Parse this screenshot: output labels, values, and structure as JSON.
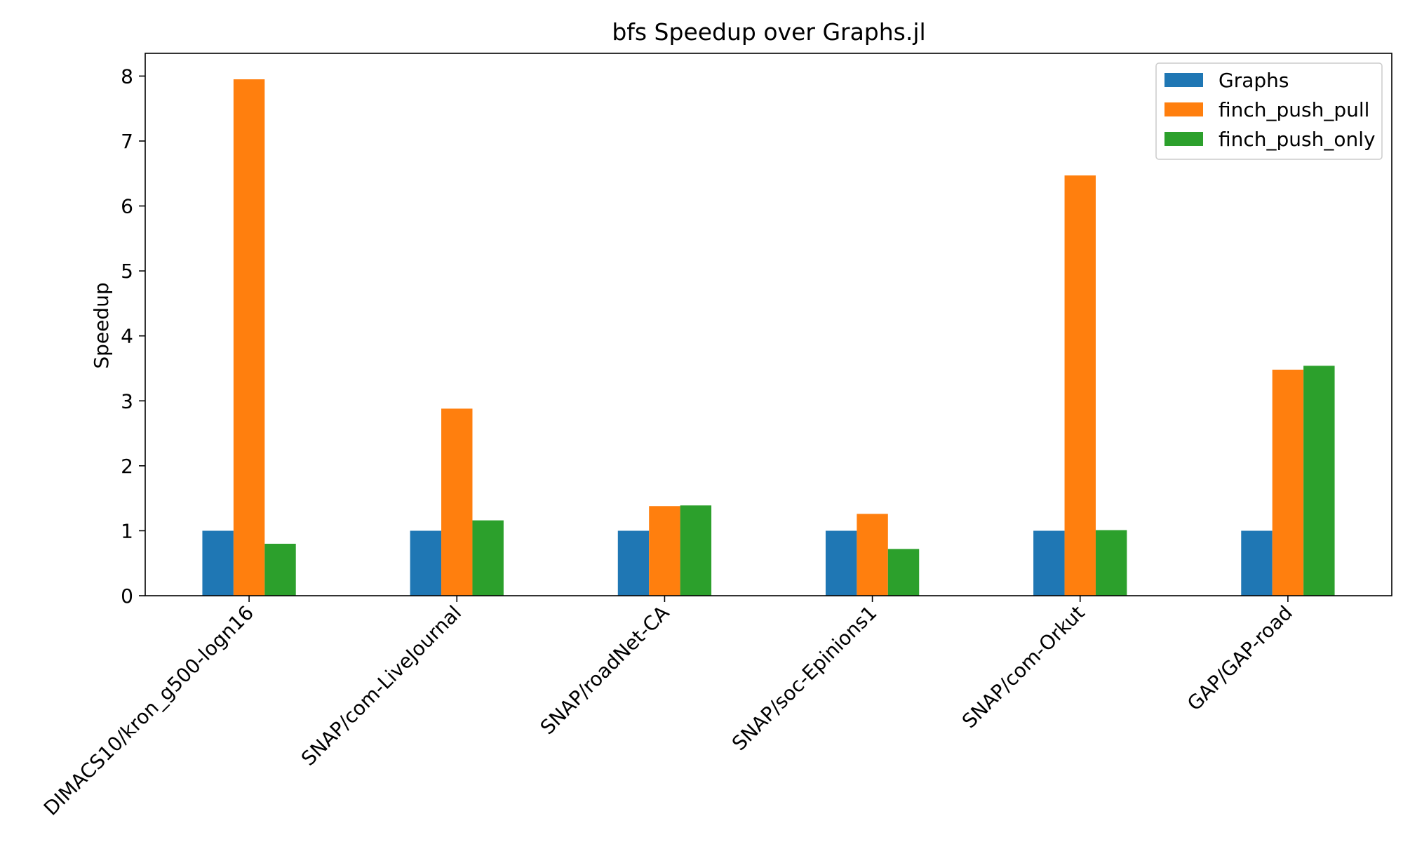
{
  "chart_data": {
    "type": "bar",
    "title": "bfs Speedup over Graphs.jl",
    "xlabel": "",
    "ylabel": "Speedup",
    "ylim": [
      0,
      8.35
    ],
    "yticks": [
      0,
      1,
      2,
      3,
      4,
      5,
      6,
      7,
      8
    ],
    "grid": false,
    "legend_position": "top-right",
    "categories": [
      "DIMACS10/kron_g500-logn16",
      "SNAP/com-LiveJournal",
      "SNAP/roadNet-CA",
      "SNAP/soc-Epinions1",
      "SNAP/com-Orkut",
      "GAP/GAP-road"
    ],
    "series": [
      {
        "name": "Graphs",
        "color": "#1f77b4",
        "values": [
          1.0,
          1.0,
          1.0,
          1.0,
          1.0,
          1.0
        ]
      },
      {
        "name": "finch_push_pull",
        "color": "#ff7f0e",
        "values": [
          7.95,
          2.88,
          1.38,
          1.26,
          6.47,
          3.48
        ]
      },
      {
        "name": "finch_push_only",
        "color": "#2ca02c",
        "values": [
          0.8,
          1.16,
          1.39,
          0.72,
          1.01,
          3.54
        ]
      }
    ]
  }
}
